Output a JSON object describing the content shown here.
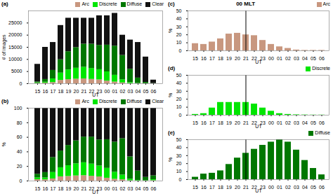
{
  "chart_data": [
    {
      "type": "bar",
      "stacked": true,
      "annotations": [
        "(a)"
      ],
      "xlabel": "UT",
      "ylabel": "# of images",
      "categories": [
        "15",
        "16",
        "17",
        "18",
        "19",
        "20",
        "21",
        "22",
        "23",
        "00",
        "01",
        "02",
        "03",
        "04",
        "05",
        "06"
      ],
      "series": [
        {
          "name": "Arc",
          "color": "#c8977f",
          "values": [
            150,
            250,
            500,
            1400,
            1700,
            1900,
            2000,
            1800,
            1600,
            1100,
            700,
            350,
            80,
            40,
            15,
            8
          ]
        },
        {
          "name": "Discrete",
          "color": "#00e600",
          "values": [
            200,
            400,
            1500,
            3000,
            4000,
            4500,
            4800,
            4500,
            4200,
            3800,
            2800,
            1300,
            400,
            100,
            40,
            20
          ]
        },
        {
          "name": "Diffuse",
          "color": "#007700",
          "values": [
            400,
            1100,
            3500,
            5500,
            7500,
            8500,
            9500,
            10000,
            10000,
            11000,
            12000,
            10000,
            5500,
            2200,
            500,
            80
          ]
        },
        {
          "name": "Clear",
          "color": "#111111",
          "values": [
            7250,
            13250,
            11500,
            14100,
            13800,
            12100,
            10700,
            10700,
            12200,
            12100,
            13500,
            8350,
            12020,
            14660,
            10445,
            1392
          ]
        }
      ],
      "ylim": [
        0,
        30000
      ],
      "yticks": [
        0,
        5000,
        10000,
        15000,
        20000,
        25000
      ],
      "legend": "upper right"
    },
    {
      "type": "bar",
      "stacked": true,
      "annotations": [
        "(b)"
      ],
      "xlabel": "UT",
      "ylabel": "%",
      "categories": [
        "15",
        "16",
        "17",
        "18",
        "19",
        "20",
        "21",
        "22",
        "23",
        "00",
        "01",
        "02",
        "03",
        "04",
        "05",
        "06"
      ],
      "series": [
        {
          "name": "Arc",
          "color": "#c8977f",
          "values": [
            1.875,
            1.6667,
            2.9412,
            5.8333,
            6.2963,
            7.037,
            7.4074,
            6.6667,
            5.7143,
            3.9286,
            2.4138,
            1.75,
            0.4444,
            0.2353,
            0.1364,
            0.5333
          ]
        },
        {
          "name": "Discrete",
          "color": "#00e600",
          "values": [
            2.5,
            2.6667,
            8.8235,
            12.5,
            14.8148,
            16.6667,
            17.7778,
            16.6667,
            15,
            13.5714,
            9.6552,
            6.5,
            2.2222,
            0.5882,
            0.3636,
            1.3333
          ]
        },
        {
          "name": "Diffuse",
          "color": "#007700",
          "values": [
            5,
            7.3333,
            20.5882,
            22.9167,
            27.7778,
            31.4815,
            35.1852,
            37.037,
            35.7143,
            39.2857,
            41.3793,
            50,
            30.5556,
            12.9412,
            4.5455,
            5.3333
          ]
        },
        {
          "name": "Clear",
          "color": "#111111",
          "values": [
            90.625,
            88.3333,
            67.6471,
            58.75,
            51.1111,
            44.8148,
            39.6296,
            39.6296,
            43.5714,
            43.2143,
            46.5517,
            41.75,
            66.7778,
            86.2353,
            94.9545,
            92.8
          ]
        }
      ],
      "ylim": [
        0,
        100
      ],
      "yticks": [
        0,
        20,
        40,
        60,
        80,
        100
      ],
      "legend": "upper right"
    },
    {
      "type": "bar",
      "title": "00 MLT",
      "annotations": [
        "(c)"
      ],
      "xlabel": "UT",
      "ylabel": "%",
      "categories": [
        "15",
        "16",
        "17",
        "18",
        "19",
        "20",
        "21",
        "22",
        "23",
        "00",
        "01",
        "02",
        "03",
        "04",
        "05",
        "06"
      ],
      "series": [
        {
          "name": "Arc",
          "color": "#c8977f",
          "values": [
            9,
            8,
            11,
            15,
            21,
            22,
            20,
            19,
            13,
            8,
            5,
            3,
            1,
            0.5,
            0.5,
            0.5
          ]
        }
      ],
      "ylim": [
        0,
        50
      ],
      "yticks": [
        0,
        10,
        20,
        30,
        40,
        50
      ],
      "legend": "upper right",
      "vline": "21"
    },
    {
      "type": "bar",
      "annotations": [
        "(d)"
      ],
      "xlabel": "UT",
      "ylabel": "%",
      "categories": [
        "15",
        "16",
        "17",
        "18",
        "19",
        "20",
        "21",
        "22",
        "23",
        "00",
        "01",
        "02",
        "03",
        "04",
        "05",
        "06"
      ],
      "series": [
        {
          "name": "Discrete",
          "color": "#00e600",
          "values": [
            1,
            2,
            9,
            16,
            16,
            16,
            16,
            14,
            9,
            5,
            2,
            1,
            0.5,
            0.3,
            0.2,
            0.2
          ]
        }
      ],
      "ylim": [
        0,
        50
      ],
      "yticks": [
        0,
        10,
        20,
        30,
        40,
        50
      ],
      "legend": "upper right",
      "vline": "21"
    },
    {
      "type": "bar",
      "annotations": [
        "(e)"
      ],
      "xlabel": "UT",
      "ylabel": "%",
      "categories": [
        "15",
        "16",
        "17",
        "18",
        "19",
        "20",
        "21",
        "22",
        "23",
        "00",
        "01",
        "02",
        "03",
        "04",
        "05",
        "06"
      ],
      "series": [
        {
          "name": "Diffuse",
          "color": "#007700",
          "values": [
            3,
            7,
            8,
            11,
            19,
            27,
            33,
            38,
            43,
            47,
            50,
            47,
            37,
            24,
            14,
            6
          ]
        }
      ],
      "ylim": [
        0,
        50
      ],
      "yticks": [
        0,
        10,
        20,
        30,
        40,
        50
      ],
      "legend": "upper right",
      "vline": "21"
    }
  ]
}
